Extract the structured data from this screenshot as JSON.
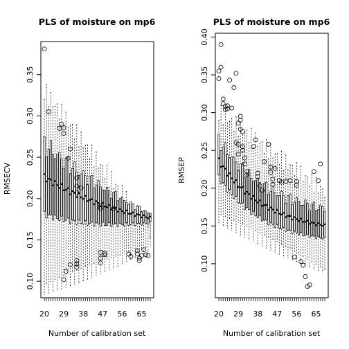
{
  "chart_data": [
    {
      "type": "boxplot",
      "title": "PLS of moisture on mp6",
      "xlabel": "Number of calibration set",
      "ylabel": "RMSECV",
      "x_range": [
        20,
        69
      ],
      "x_tick_labels": [
        20,
        29,
        38,
        47,
        56,
        65
      ],
      "ylim": [
        0.08,
        0.39
      ],
      "y_ticks": [
        0.1,
        0.15,
        0.2,
        0.25,
        0.3,
        0.35
      ],
      "y_tick_labels": [
        "0.10",
        "0.15",
        "0.20",
        "0.25",
        "0.30",
        "0.35"
      ],
      "median_trend": {
        "start": 0.226,
        "end": 0.152,
        "decay": 11
      },
      "q1_gap_trend": {
        "start": 0.045,
        "end": 0.006
      },
      "q3_gap_trend": {
        "start": 0.04,
        "end": 0.005
      },
      "whisker_low_trend": {
        "start": 0.09,
        "end": 0.14
      },
      "whisker_high_trend": {
        "start": 0.33,
        "end": 0.16
      },
      "outliers": [
        [
          20,
          0.381
        ],
        [
          22,
          0.305
        ],
        [
          27,
          0.285
        ],
        [
          28,
          0.29
        ],
        [
          29,
          0.286
        ],
        [
          29,
          0.279
        ],
        [
          29,
          0.102
        ],
        [
          30,
          0.112
        ],
        [
          31,
          0.249
        ],
        [
          32,
          0.26
        ],
        [
          32,
          0.12
        ],
        [
          35,
          0.225
        ],
        [
          35,
          0.215
        ],
        [
          35,
          0.207
        ],
        [
          35,
          0.125
        ],
        [
          35,
          0.121
        ],
        [
          35,
          0.117
        ],
        [
          37,
          0.213
        ],
        [
          46,
          0.191
        ],
        [
          46,
          0.188
        ],
        [
          46,
          0.135
        ],
        [
          46,
          0.128
        ],
        [
          46,
          0.122
        ],
        [
          48,
          0.134
        ],
        [
          48,
          0.132
        ],
        [
          52,
          0.188
        ],
        [
          59,
          0.133
        ],
        [
          60,
          0.13
        ],
        [
          63,
          0.137
        ],
        [
          63,
          0.133
        ],
        [
          64,
          0.128
        ],
        [
          64,
          0.125
        ],
        [
          65,
          0.131
        ],
        [
          66,
          0.138
        ],
        [
          67,
          0.132
        ],
        [
          68,
          0.131
        ]
      ]
    },
    {
      "type": "boxplot",
      "title": "PLS of moisture on mp6",
      "xlabel": "Number of calibration set",
      "ylabel": "RMSEP",
      "x_range": [
        20,
        69
      ],
      "x_tick_labels": [
        20,
        29,
        38,
        47,
        56,
        65
      ],
      "ylim": [
        0.055,
        0.405
      ],
      "y_ticks": [
        0.1,
        0.15,
        0.2,
        0.25,
        0.3,
        0.35,
        0.4
      ],
      "y_tick_labels": [
        "0.10",
        "0.15",
        "0.20",
        "0.25",
        "0.30",
        "0.35",
        "0.40"
      ],
      "median_trend": {
        "start": 0.236,
        "end": 0.14,
        "decay": 22
      },
      "q1_gap_trend": {
        "start": 0.022,
        "end": 0.017
      },
      "q3_gap_trend": {
        "start": 0.028,
        "end": 0.022
      },
      "whisker_low_trend": {
        "start": 0.16,
        "end": 0.09
      },
      "whisker_high_trend": {
        "start": 0.3,
        "end": 0.195
      },
      "outliers": [
        [
          20,
          0.345
        ],
        [
          20,
          0.355
        ],
        [
          21,
          0.36
        ],
        [
          21,
          0.39
        ],
        [
          22,
          0.318
        ],
        [
          22,
          0.312
        ],
        [
          23,
          0.308
        ],
        [
          23,
          0.304
        ],
        [
          24,
          0.309
        ],
        [
          24,
          0.305
        ],
        [
          25,
          0.343
        ],
        [
          26,
          0.306
        ],
        [
          27,
          0.333
        ],
        [
          28,
          0.352
        ],
        [
          28,
          0.26
        ],
        [
          29,
          0.245
        ],
        [
          29,
          0.258
        ],
        [
          29,
          0.286
        ],
        [
          30,
          0.295
        ],
        [
          30,
          0.29
        ],
        [
          30,
          0.278
        ],
        [
          31,
          0.275
        ],
        [
          31,
          0.25
        ],
        [
          31,
          0.255
        ],
        [
          32,
          0.24
        ],
        [
          32,
          0.232
        ],
        [
          33,
          0.222
        ],
        [
          33,
          0.218
        ],
        [
          36,
          0.255
        ],
        [
          37,
          0.264
        ],
        [
          38,
          0.215
        ],
        [
          38,
          0.22
        ],
        [
          39,
          0.203
        ],
        [
          40,
          0.197
        ],
        [
          41,
          0.235
        ],
        [
          43,
          0.258
        ],
        [
          44,
          0.228
        ],
        [
          44,
          0.221
        ],
        [
          45,
          0.205
        ],
        [
          45,
          0.212
        ],
        [
          46,
          0.226
        ],
        [
          48,
          0.21
        ],
        [
          49,
          0.208
        ],
        [
          51,
          0.209
        ],
        [
          53,
          0.21
        ],
        [
          55,
          0.109
        ],
        [
          56,
          0.204
        ],
        [
          56,
          0.209
        ],
        [
          58,
          0.103
        ],
        [
          59,
          0.098
        ],
        [
          60,
          0.083
        ],
        [
          61,
          0.07
        ],
        [
          62,
          0.072
        ],
        [
          64,
          0.222
        ],
        [
          66,
          0.21
        ],
        [
          67,
          0.232
        ]
      ]
    }
  ]
}
